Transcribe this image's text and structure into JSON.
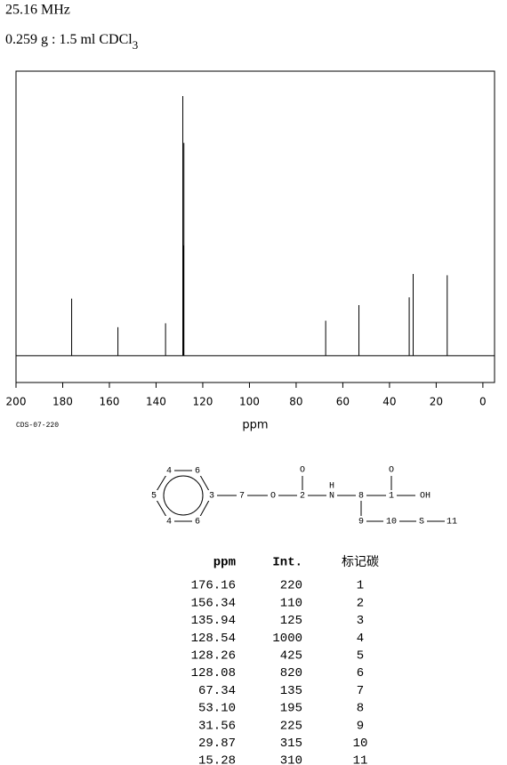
{
  "header": {
    "frequency": "25.16 MHz",
    "sample": "0.259 g : 1.5 ml CDCl",
    "sample_subscript": "3"
  },
  "chart_data": {
    "type": "spectrum",
    "xlabel": "ppm",
    "code": "CDS-07-220",
    "color": "#000000",
    "x": [
      176.16,
      156.34,
      135.94,
      128.54,
      128.26,
      128.08,
      67.34,
      53.1,
      31.56,
      29.87,
      15.28
    ],
    "values": [
      220,
      110,
      125,
      1000,
      425,
      820,
      135,
      195,
      225,
      315,
      310
    ],
    "xlim": [
      200,
      -5
    ],
    "xticks": [
      200,
      180,
      160,
      140,
      120,
      100,
      80,
      60,
      40,
      20,
      0
    ],
    "ylim": [
      -103,
      1096
    ]
  },
  "structure": {
    "labels": [
      "4",
      "6",
      "5",
      "3",
      "4",
      "6",
      "7",
      "O",
      "2",
      "O",
      "N",
      "H",
      "8",
      "1",
      "O",
      "OH",
      "9",
      "10",
      "S",
      "11"
    ]
  },
  "table": {
    "header": [
      "ppm",
      "Int.",
      "标记碳"
    ],
    "rows": [
      [
        "176.16",
        "220",
        "1"
      ],
      [
        "156.34",
        "110",
        "2"
      ],
      [
        "135.94",
        "125",
        "3"
      ],
      [
        "128.54",
        "1000",
        "4"
      ],
      [
        "128.26",
        "425",
        "5"
      ],
      [
        "128.08",
        "820",
        "6"
      ],
      [
        "67.34",
        "135",
        "7"
      ],
      [
        "53.10",
        "195",
        "8"
      ],
      [
        "31.56",
        "225",
        "9"
      ],
      [
        "29.87",
        "315",
        "10"
      ],
      [
        "15.28",
        "310",
        "11"
      ]
    ]
  }
}
